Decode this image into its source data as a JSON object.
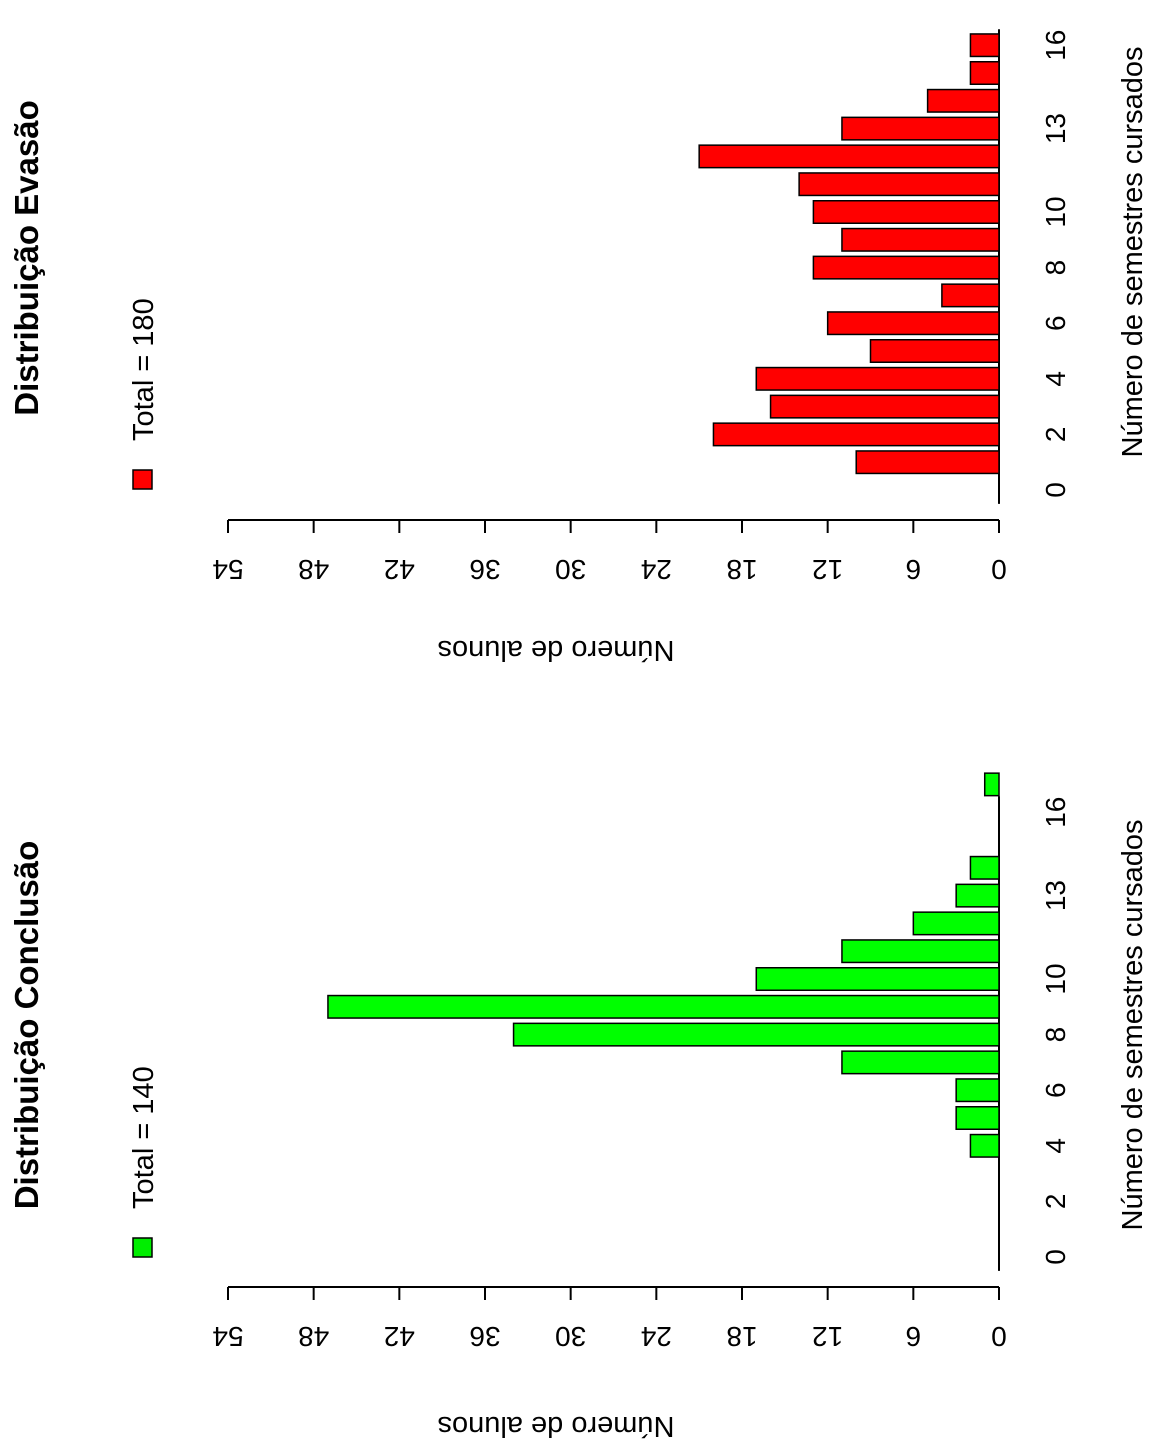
{
  "chart_data": [
    {
      "type": "bar",
      "title": "Distribuição Evasão",
      "xlabel": "Número de semestres cursados",
      "ylabel": "Número de alunos",
      "legend": {
        "label": "Total = 180",
        "color": "#ff0000",
        "position": "top-left"
      },
      "x_ticks": [
        "0",
        "2",
        "4",
        "6",
        "8",
        "10",
        "13",
        "16"
      ],
      "y_ticks": [
        "0",
        "6",
        "12",
        "18",
        "24",
        "30",
        "36",
        "42",
        "48",
        "54"
      ],
      "ylim": [
        0,
        54
      ],
      "categories": [
        0,
        1,
        2,
        3,
        4,
        5,
        6,
        7,
        8,
        9,
        10,
        11,
        12,
        13,
        14,
        15,
        16
      ],
      "values": [
        0,
        10,
        20,
        16,
        17,
        9,
        12,
        4,
        13,
        11,
        13,
        14,
        21,
        11,
        5,
        2,
        2
      ],
      "bar_color": "#ff0000",
      "grid": false
    },
    {
      "type": "bar",
      "title": "Distribuição Conclusão",
      "xlabel": "Número de semestres cursados",
      "ylabel": "Número de alunos",
      "legend": {
        "label": "Total = 140",
        "color": "#00ee00",
        "position": "top-left"
      },
      "x_ticks": [
        "0",
        "2",
        "4",
        "6",
        "8",
        "10",
        "13",
        "16"
      ],
      "y_ticks": [
        "0",
        "6",
        "12",
        "18",
        "24",
        "30",
        "36",
        "42",
        "48",
        "54"
      ],
      "ylim": [
        0,
        54
      ],
      "categories": [
        0,
        1,
        2,
        3,
        4,
        5,
        6,
        7,
        8,
        9,
        10,
        11,
        12,
        13,
        14,
        15,
        16,
        17
      ],
      "values": [
        0,
        0,
        0,
        0,
        2,
        3,
        3,
        11,
        34,
        47,
        17,
        11,
        6,
        3,
        2,
        0,
        0,
        1
      ],
      "bar_color": "#00ff00",
      "grid": false
    }
  ]
}
